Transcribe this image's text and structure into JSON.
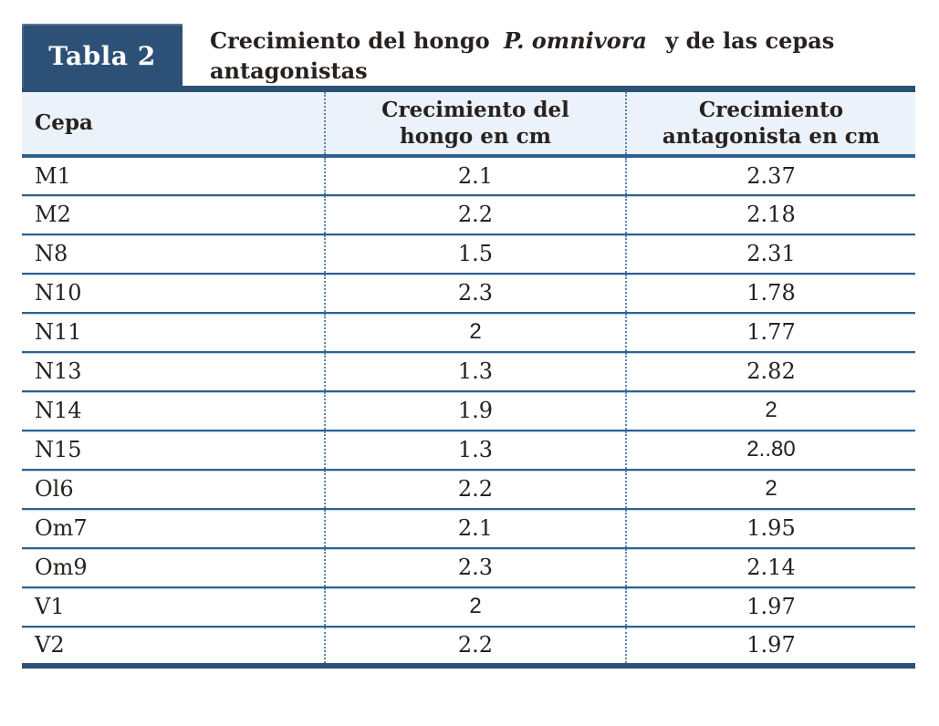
{
  "badge": {
    "label": "Tabla 2"
  },
  "title": {
    "line1_prefix": "Crecimiento del hongo",
    "line1_italic": "P. omnivora",
    "line1_suffix": "y de las cepas",
    "line2": "antagonistas"
  },
  "table": {
    "headers": {
      "col1": "Cepa",
      "col2_line1": "Crecimiento del",
      "col2_line2": "hongo en cm",
      "col3_line1": "Crecimiento",
      "col3_line2": "antagonista en cm"
    },
    "rows": [
      [
        "M1",
        "2.1",
        "2.37"
      ],
      [
        "M2",
        "2.2",
        "2.18"
      ],
      [
        "N8",
        "1.5",
        "2.31"
      ],
      [
        "N10",
        "2.3",
        "1.78"
      ],
      [
        "N11",
        "2",
        "1.77"
      ],
      [
        "N13",
        "1.3",
        "2.82"
      ],
      [
        "N14",
        "1.9",
        "2"
      ],
      [
        "N15",
        "1.3",
        "2..80"
      ],
      [
        "Ol6",
        "2.2",
        "2"
      ],
      [
        "Om7",
        "2.1",
        "1.95"
      ],
      [
        "Om9",
        "2.3",
        "2.14"
      ],
      [
        "V1",
        "2",
        "1.97"
      ],
      [
        "V2",
        "2.2",
        "1.97"
      ]
    ]
  },
  "colors": {
    "navy": "#2d5176",
    "header_bg": "#ecf2f9",
    "line": "#2e6191",
    "dotted": "#5b84ad",
    "text": "#272220"
  }
}
